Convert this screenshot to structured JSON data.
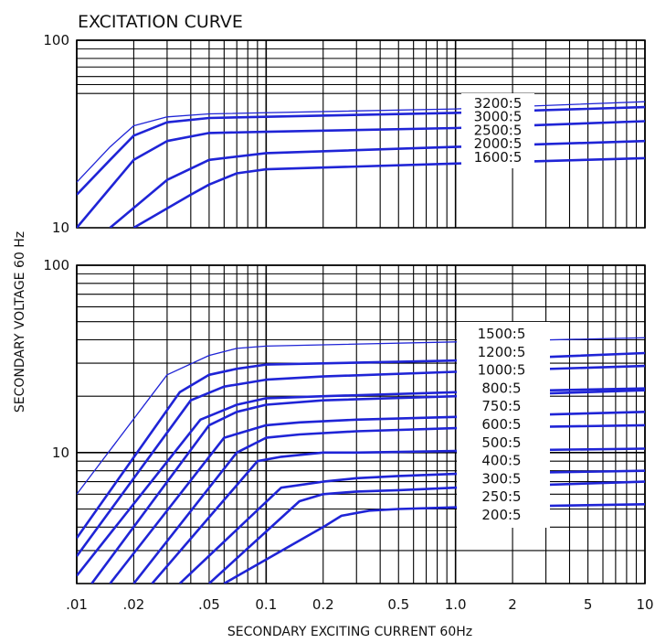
{
  "chart_data": {
    "type": "line",
    "title": "EXCITATION CURVE",
    "xlabel": "SECONDARY  EXCITING  CURRENT  60Hz",
    "ylabel": "SECONDARY  VOLTAGE  60  Hz",
    "x_scale": "log",
    "y_scale": "log",
    "grid": true,
    "xlim": [
      0.01,
      10
    ],
    "x_ticks": [
      ".01",
      ".02",
      ".05",
      "0.1",
      "0.2",
      "0.5",
      "1.0",
      "2",
      "5",
      "10"
    ],
    "colors": {
      "curve": "#1f24d6",
      "grid": "#000000",
      "box": "#ffffff"
    },
    "panels": [
      {
        "name": "upper",
        "ylim": [
          10,
          100
        ],
        "y_ticks": [
          "10",
          "100"
        ],
        "series": [
          {
            "name": "3200:5",
            "x": [
              0.01,
              0.015,
              0.02,
              0.03,
              0.05,
              1.0,
              10
            ],
            "y": [
              17.5,
              27,
              35,
              39,
              40.5,
              43,
              47
            ]
          },
          {
            "name": "3000:5",
            "x": [
              0.01,
              0.015,
              0.02,
              0.03,
              0.05,
              1.0,
              10
            ],
            "y": [
              15,
              23,
              31,
              36.5,
              38.5,
              41,
              44
            ]
          },
          {
            "name": "2500:5",
            "x": [
              0.01,
              0.02,
              0.03,
              0.05,
              0.1,
              1.0,
              10
            ],
            "y": [
              10,
              23,
              29,
              32,
              32.5,
              34,
              37
            ]
          },
          {
            "name": "2000:5",
            "x": [
              0.015,
              0.03,
              0.05,
              0.1,
              1.0,
              10
            ],
            "y": [
              10,
              18,
              23,
              25,
              27,
              29
            ]
          },
          {
            "name": "1600:5",
            "x": [
              0.02,
              0.04,
              0.05,
              0.07,
              0.1,
              1.0,
              10
            ],
            "y": [
              10,
              15,
              17,
              19.5,
              20.5,
              22,
              23.5
            ]
          }
        ]
      },
      {
        "name": "lower",
        "ylim": [
          2,
          100
        ],
        "y_ticks": [
          "10",
          "100"
        ],
        "series": [
          {
            "name": "1500:5",
            "x": [
              0.01,
              0.03,
              0.05,
              0.07,
              0.1,
              1.0,
              10
            ],
            "y": [
              6,
              26,
              33,
              36,
              37,
              39,
              41
            ]
          },
          {
            "name": "1200:5",
            "x": [
              0.01,
              0.035,
              0.05,
              0.07,
              0.1,
              1.0,
              10
            ],
            "y": [
              3.5,
              21,
              26,
              28,
              29.5,
              31,
              34
            ]
          },
          {
            "name": "1000:5",
            "x": [
              0.01,
              0.04,
              0.06,
              0.1,
              0.2,
              1.0,
              10
            ],
            "y": [
              2.8,
              19,
              22.5,
              24.5,
              25.5,
              27,
              29
            ]
          },
          {
            "name": "800:5",
            "x": [
              0.01,
              0.045,
              0.07,
              0.1,
              0.2,
              1.0,
              10
            ],
            "y": [
              2.2,
              15,
              18,
              19.5,
              20,
              21,
              22
            ]
          },
          {
            "name": "750:5",
            "x": [
              0.012,
              0.05,
              0.07,
              0.1,
              0.2,
              1.0,
              10
            ],
            "y": [
              2,
              14,
              16.5,
              18,
              19,
              20,
              21.5
            ]
          },
          {
            "name": "600:5",
            "x": [
              0.015,
              0.06,
              0.1,
              0.15,
              0.3,
              1.0,
              10
            ],
            "y": [
              2,
              12,
              14,
              14.5,
              15,
              15.5,
              16.5
            ]
          },
          {
            "name": "500:5",
            "x": [
              0.02,
              0.07,
              0.1,
              0.15,
              0.3,
              1.0,
              10
            ],
            "y": [
              2,
              10,
              12,
              12.5,
              13,
              13.5,
              14
            ]
          },
          {
            "name": "400:5",
            "x": [
              0.025,
              0.09,
              0.12,
              0.2,
              0.3,
              1.0,
              10
            ],
            "y": [
              2,
              9,
              9.5,
              10,
              10,
              10.2,
              10.5
            ]
          },
          {
            "name": "300:5",
            "x": [
              0.035,
              0.12,
              0.2,
              0.3,
              0.5,
              1.0,
              10
            ],
            "y": [
              2,
              6.5,
              7,
              7.3,
              7.5,
              7.7,
              8
            ]
          },
          {
            "name": "250:5",
            "x": [
              0.05,
              0.15,
              0.2,
              0.3,
              0.5,
              1.0,
              10
            ],
            "y": [
              2,
              5.5,
              6,
              6.2,
              6.3,
              6.5,
              7
            ]
          },
          {
            "name": "200:5",
            "x": [
              0.06,
              0.2,
              0.25,
              0.35,
              0.5,
              1.0,
              10
            ],
            "y": [
              2,
              4,
              4.6,
              4.9,
              5,
              5.1,
              5.3
            ]
          }
        ]
      }
    ]
  }
}
